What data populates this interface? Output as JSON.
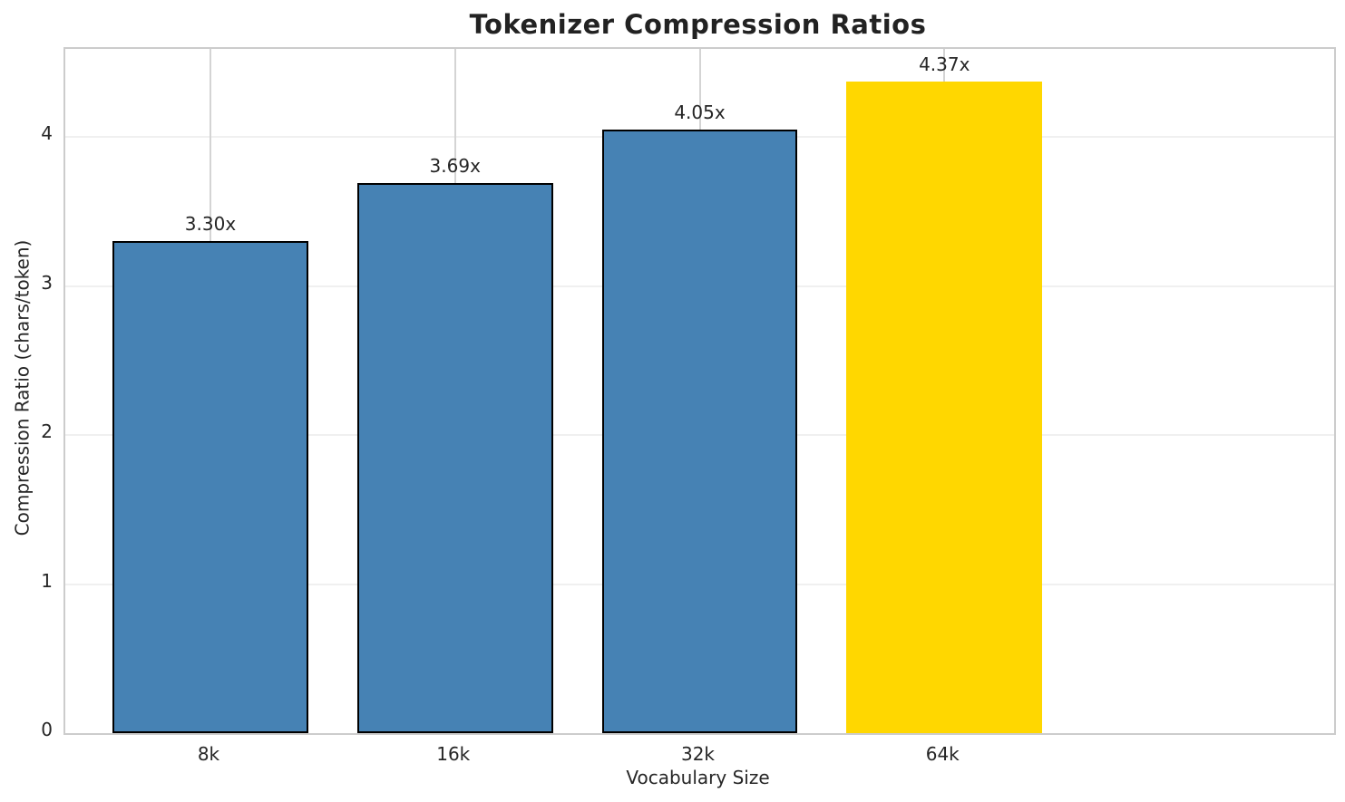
{
  "chart_data": {
    "type": "bar",
    "title": "Tokenizer Compression Ratios",
    "xlabel": "Vocabulary Size",
    "ylabel": "Compression Ratio (chars/token)",
    "categories": [
      "8k",
      "16k",
      "32k",
      "64k"
    ],
    "values": [
      3.3,
      3.69,
      4.05,
      4.37
    ],
    "bar_labels": [
      "3.30x",
      "3.69x",
      "4.05x",
      "4.37x"
    ],
    "bar_colors": [
      "#4682b4",
      "#4682b4",
      "#4682b4",
      "#ffd700"
    ],
    "bar_edge_colors": [
      "#000000",
      "#000000",
      "#000000",
      "none"
    ],
    "highlight_color": "#ffd700",
    "base_color": "#4682b4",
    "yticks": [
      0,
      1,
      2,
      3,
      4
    ],
    "ylim": [
      0,
      4.59
    ],
    "grid": "both",
    "grid_color_horizontal": "#f0f0f0",
    "grid_color_vertical": "#d4d4d4",
    "spine_color": "#cccccc",
    "text_color": "#262626",
    "legend_position": "none"
  }
}
